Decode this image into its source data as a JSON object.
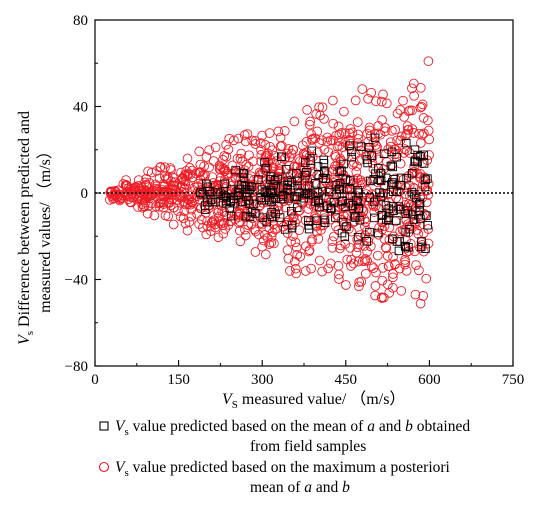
{
  "chart_data": {
    "type": "scatter",
    "xlabel": {
      "symbol": "V",
      "subscript": "S",
      "text": " measured value/ （m/s）"
    },
    "ylabel": {
      "symbol": "V",
      "subscript": "s",
      "line1": " Difference between predicted and",
      "line2": "measured values/ （m/s）"
    },
    "xlim": [
      0,
      750
    ],
    "ylim": [
      -80,
      80
    ],
    "xticks": [
      0,
      150,
      300,
      450,
      600,
      750
    ],
    "yticks": [
      -80,
      -40,
      0,
      40,
      80
    ],
    "xtick_labels": [
      "0",
      "150",
      "300",
      "450",
      "600",
      "750"
    ],
    "ytick_labels": [
      "−80",
      "−40",
      "0",
      "40",
      "80"
    ],
    "reference_line": {
      "y": 0,
      "style": "dotted"
    },
    "grid": false,
    "legend_position": "bottom",
    "series": [
      {
        "marker": "square",
        "color": "#000000",
        "legend": {
          "symbol": "V",
          "subscript": "s",
          "line1_a": " value predicted based on the mean of ",
          "var_a": "a",
          "line1_b": " and ",
          "var_b": "b",
          "line1_c": " obtained",
          "line2": "from field samples"
        },
        "x_range": [
          180,
          600
        ],
        "spread_at_min_x": 8,
        "spread_at_max_x": 32,
        "point_count": 260
      },
      {
        "marker": "circle",
        "color": "#ee1c25",
        "legend": {
          "symbol": "V",
          "subscript": "s",
          "line1": " value predicted based on the maximum a posteriori",
          "line2_a": "mean of ",
          "var_a": "a",
          "line2_b": " and ",
          "var_b": "b"
        },
        "x_range": [
          25,
          600
        ],
        "spread_at_min_x": 3,
        "spread_at_max_x": 62,
        "point_count": 1100
      }
    ]
  }
}
